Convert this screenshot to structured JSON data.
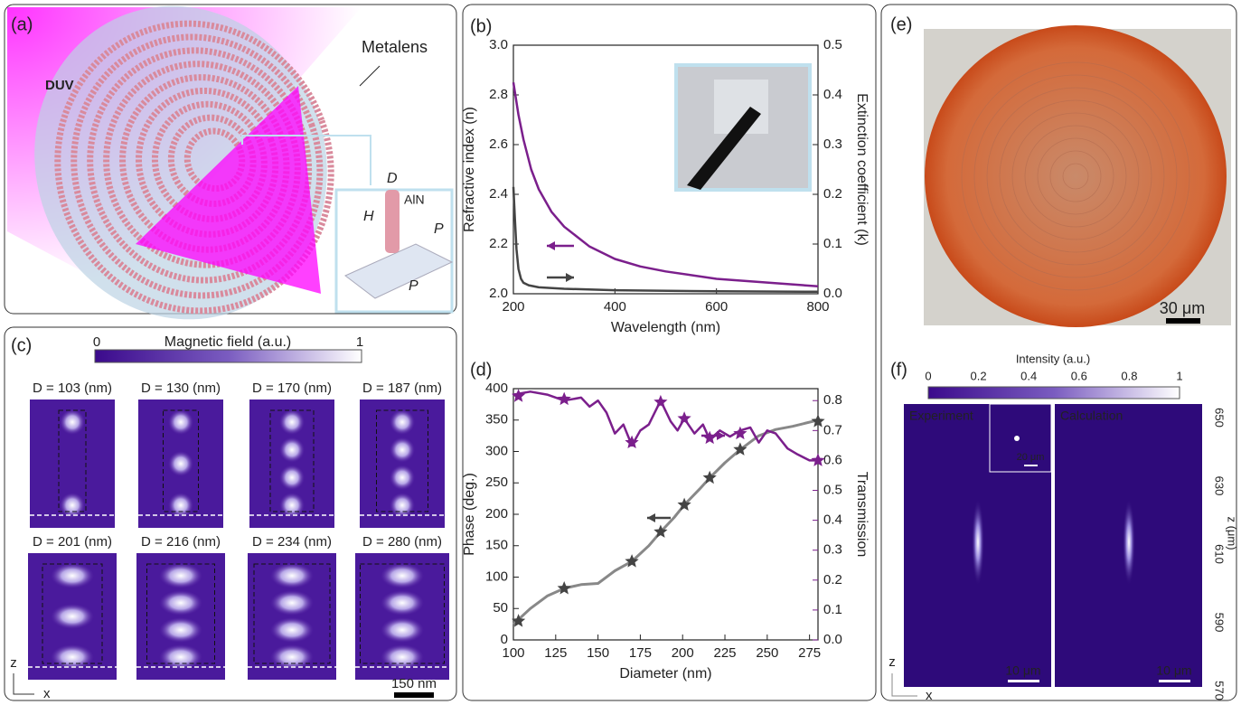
{
  "chart_data": [
    {
      "type": "line",
      "panel": "(b)",
      "xlabel": "Wavelength (nm)",
      "ylabel": "Refractive index (n)",
      "y2label": "Extinction coefficient (k)",
      "xlim": [
        200,
        800
      ],
      "xticks": [
        200,
        400,
        600,
        800
      ],
      "ylim": [
        2,
        3
      ],
      "yticks": [
        {
          "value": 2,
          "label": "2.0"
        },
        {
          "value": 2.2,
          "label": "2.2"
        },
        {
          "value": 2.4,
          "label": "2.4"
        },
        {
          "value": 2.6,
          "label": "2.6"
        },
        {
          "value": 2.8,
          "label": "2.8"
        },
        {
          "value": 3,
          "label": "3.0"
        }
      ],
      "y2lim": [
        0,
        0.5
      ],
      "y2ticks": [
        {
          "value": 0,
          "label": "0.0"
        },
        0.1,
        0.2,
        0.3,
        0.4,
        0.5
      ],
      "series": [
        {
          "color": "#7b1f8c",
          "x": [
            200,
            210,
            220,
            235,
            250,
            275,
            300,
            350,
            400,
            450,
            500,
            600,
            700,
            800
          ],
          "values": [
            2.85,
            2.72,
            2.62,
            2.5,
            2.42,
            2.33,
            2.27,
            2.19,
            2.14,
            2.11,
            2.09,
            2.06,
            2.045,
            2.03
          ]
        },
        {
          "color": "#444444",
          "axis": "y2",
          "x": [
            200,
            203,
            206,
            210,
            215,
            220,
            230,
            250,
            300,
            400,
            600,
            800
          ],
          "values": [
            0.215,
            0.15,
            0.09,
            0.05,
            0.03,
            0.022,
            0.017,
            0.013,
            0.01,
            0.007,
            0.005,
            0.004
          ]
        }
      ]
    },
    {
      "type": "line",
      "panel": "(d)",
      "xlabel": "Diameter (nm)",
      "ylabel": "Phase (deg.)",
      "y2label": "Transmission",
      "xlim": [
        100,
        280
      ],
      "xticks": [
        100,
        125,
        150,
        175,
        200,
        225,
        250,
        275
      ],
      "ylim": [
        0,
        400
      ],
      "yticks": [
        0,
        50,
        100,
        150,
        200,
        250,
        300,
        350,
        400
      ],
      "y2lim": [
        0,
        0.84
      ],
      "y2ticks": [
        {
          "value": 0,
          "label": "0.0"
        },
        0.1,
        0.2,
        0.3,
        0.4,
        0.5,
        0.6,
        0.7,
        0.8
      ],
      "series": [
        {
          "color": "#888888",
          "x": [
            100,
            110,
            120,
            130,
            140,
            150,
            160,
            170,
            180,
            187,
            195,
            201,
            210,
            216,
            225,
            234,
            245,
            255,
            265,
            280
          ],
          "values": [
            25,
            50,
            70,
            82,
            88,
            90,
            110,
            125,
            150,
            172,
            195,
            215,
            240,
            258,
            282,
            303,
            325,
            335,
            340,
            350
          ]
        },
        {
          "color": "#444444",
          "marker": "star",
          "x": [
            103,
            130,
            170,
            187,
            201,
            216,
            234,
            280
          ],
          "values": [
            30,
            82,
            125,
            172,
            215,
            258,
            303,
            348
          ]
        },
        {
          "color": "#7b1f8c",
          "axis": "y2",
          "x": [
            100,
            110,
            120,
            130,
            140,
            145,
            150,
            155,
            160,
            165,
            170,
            175,
            180,
            187,
            193,
            197,
            201,
            207,
            212,
            216,
            222,
            228,
            234,
            240,
            245,
            250,
            255,
            262,
            268,
            275,
            280
          ],
          "values": [
            0.82,
            0.83,
            0.82,
            0.8,
            0.81,
            0.78,
            0.8,
            0.76,
            0.69,
            0.72,
            0.65,
            0.7,
            0.72,
            0.8,
            0.73,
            0.7,
            0.74,
            0.69,
            0.72,
            0.67,
            0.7,
            0.68,
            0.7,
            0.71,
            0.66,
            0.7,
            0.69,
            0.64,
            0.62,
            0.6,
            0.6
          ]
        },
        {
          "color": "#7b1f8c",
          "axis": "y2",
          "marker": "star",
          "x": [
            103,
            130,
            170,
            187,
            201,
            216,
            234,
            280
          ],
          "values": [
            0.815,
            0.805,
            0.66,
            0.795,
            0.74,
            0.675,
            0.69,
            0.6
          ]
        }
      ]
    }
  ],
  "panel_a": {
    "label": "(a)",
    "beam": "DUV",
    "metalens": "Metalens",
    "d": "D",
    "h": "H",
    "material": "AlN",
    "p1": "P",
    "p2": "P"
  },
  "panel_c": {
    "label": "(c)",
    "colorbar_title": "Magnetic field (a.u.)",
    "colorbar_min": "0",
    "colorbar_max": "1",
    "tiles": [
      "D = 103 (nm)",
      "D = 130 (nm)",
      "D = 170 (nm)",
      "D = 187 (nm)",
      "D = 201 (nm)",
      "D = 216 (nm)",
      "D = 234 (nm)",
      "D = 280 (nm)"
    ],
    "axis_z": "z",
    "axis_x": "x",
    "scale": "150 nm"
  },
  "panel_e": {
    "label": "(e)",
    "scale": "30 μm"
  },
  "panel_f": {
    "label": "(f)",
    "colorbar_title": "Intensity (a.u.)",
    "colorbar_ticks": [
      0,
      0.2,
      0.4,
      0.6,
      0.8,
      1
    ],
    "left_title": "Experiment",
    "right_title": "Calculation",
    "inset_scale": "20 μm",
    "left_scale": "10 μm",
    "right_scale": "10 μm",
    "z_label": "z (μm)",
    "z_ticks": [
      650,
      630,
      610,
      590,
      570
    ],
    "axis_z": "z",
    "axis_x": "x"
  }
}
